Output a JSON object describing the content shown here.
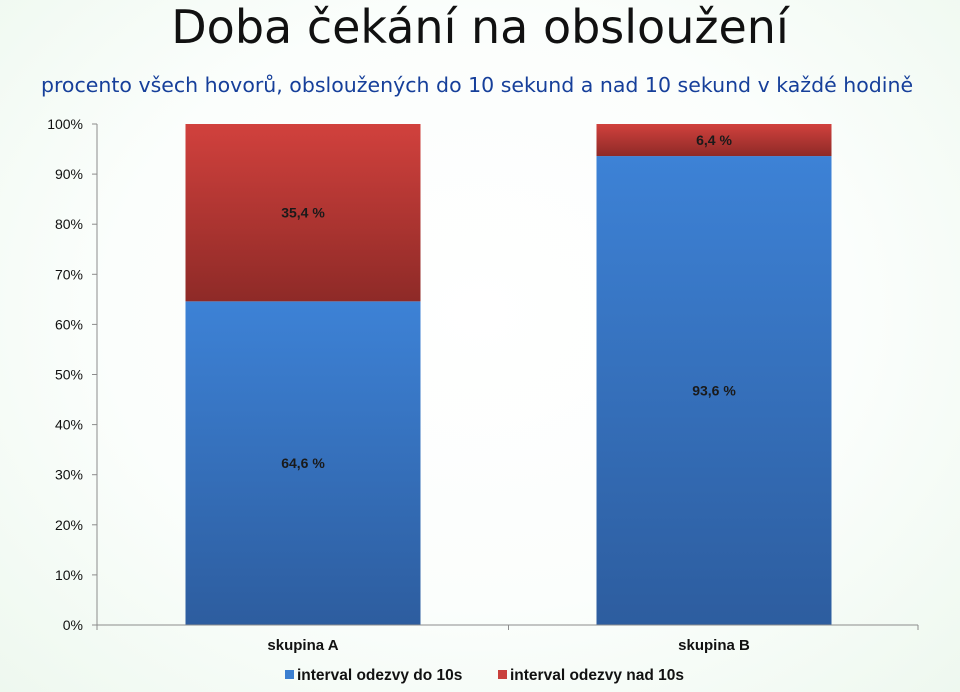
{
  "chart_data": {
    "type": "bar",
    "stacked": true,
    "title": "Doba čekání na obsloužení",
    "subtitle": "procento všech hovorů, obsloužených do 10 sekund a nad 10 sekund v každé hodině",
    "categories": [
      "skupina A",
      "skupina B"
    ],
    "series": [
      {
        "name": "interval odezvy do 10s",
        "values": [
          64.6,
          93.6
        ],
        "labels": [
          "64,6 %",
          "93,6 %"
        ],
        "color": "#3b7fd0"
      },
      {
        "name": "interval odezvy nad 10s",
        "values": [
          35.4,
          6.4
        ],
        "labels": [
          "35,4 %",
          "6,4 %"
        ],
        "color": "#c9403c"
      }
    ],
    "ylim": [
      0,
      100
    ],
    "yticks": [
      "0%",
      "10%",
      "20%",
      "30%",
      "40%",
      "50%",
      "60%",
      "70%",
      "80%",
      "90%",
      "100%"
    ],
    "grid": false,
    "legend_position": "bottom"
  }
}
